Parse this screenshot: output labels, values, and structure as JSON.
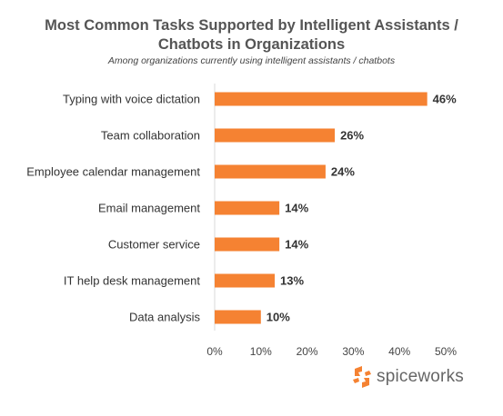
{
  "chart_data": {
    "type": "bar",
    "orientation": "horizontal",
    "title": "Most Common Tasks Supported by Intelligent Assistants / Chatbots in Organizations",
    "title_lines": [
      "Most Common Tasks Supported by Intelligent Assistants /",
      "Chatbots in Organizations"
    ],
    "subtitle": "Among organizations currently using intelligent assistants / chatbots",
    "categories": [
      "Typing with voice dictation",
      "Team collaboration",
      "Employee calendar management",
      "Email management",
      "Customer service",
      "IT help desk management",
      "Data analysis"
    ],
    "values": [
      46,
      26,
      24,
      14,
      14,
      13,
      10
    ],
    "value_labels": [
      "46%",
      "26%",
      "24%",
      "14%",
      "14%",
      "13%",
      "10%"
    ],
    "xlim": [
      0,
      50
    ],
    "ticks": [
      "0%",
      "10%",
      "20%",
      "30%",
      "40%",
      "50%"
    ],
    "grid": false,
    "bar_color": "#f58232"
  },
  "brand": {
    "name": "spiceworks",
    "logo_color": "#f58232"
  }
}
